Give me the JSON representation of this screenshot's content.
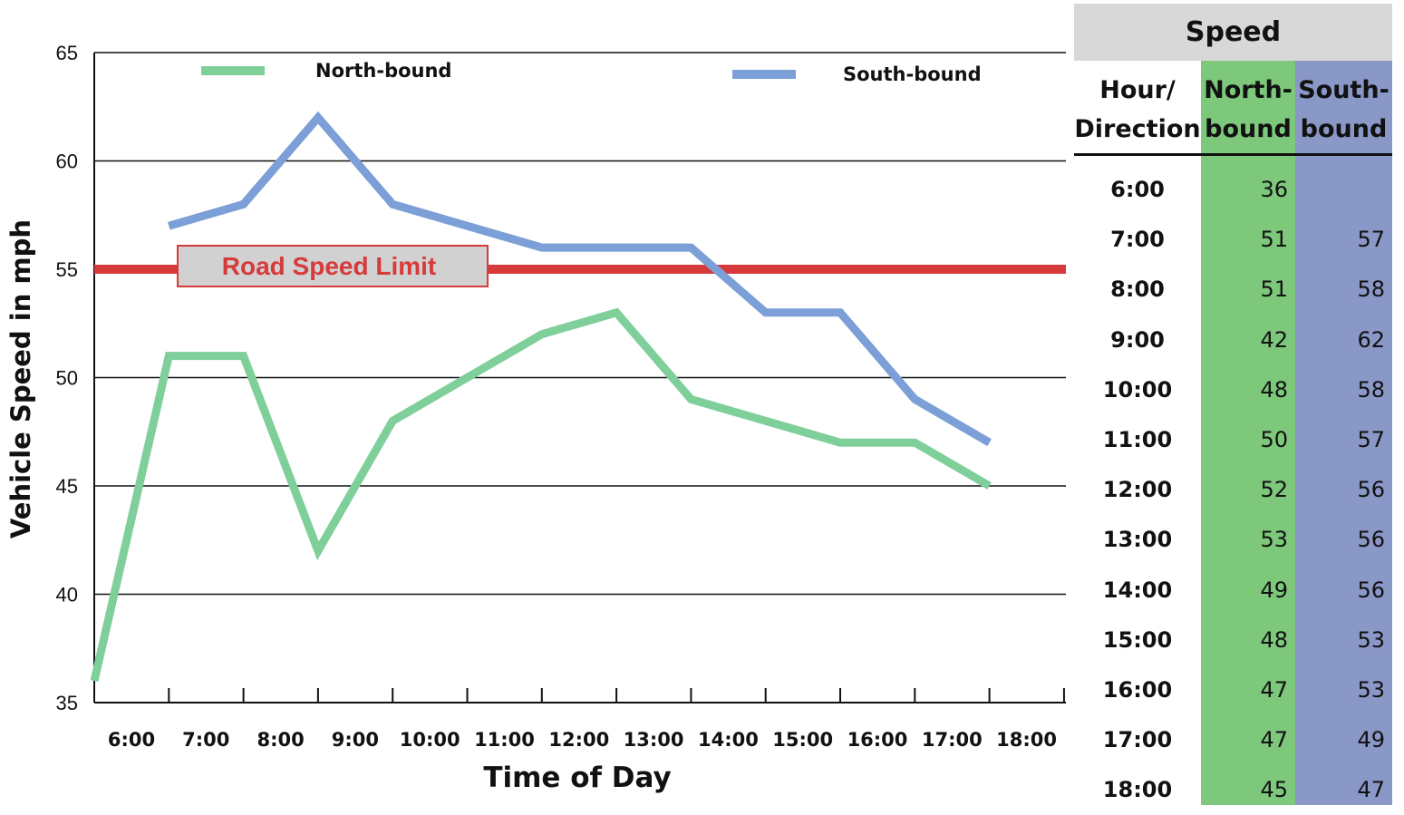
{
  "chart_data": {
    "type": "line",
    "xlabel": "Time of Day",
    "ylabel": "Vehicle Speed  in mph",
    "categories": [
      "6:00",
      "7:00",
      "8:00",
      "9:00",
      "10:00",
      "11:00",
      "12:00",
      "13:00",
      "14:00",
      "15:00",
      "16:00",
      "17:00",
      "18:00"
    ],
    "ylim": [
      35,
      65
    ],
    "yticks": [
      35,
      40,
      45,
      50,
      55,
      60,
      65
    ],
    "grid": true,
    "series": [
      {
        "name": "North-bound",
        "color": "#7fcf9a",
        "values": [
          36,
          51,
          51,
          42,
          48,
          50,
          52,
          53,
          49,
          48,
          47,
          47,
          45
        ]
      },
      {
        "name": "South-bound",
        "color": "#7b9fd6",
        "values": [
          null,
          57,
          58,
          62,
          58,
          57,
          56,
          56,
          56,
          53,
          53,
          49,
          47
        ]
      }
    ],
    "reference_line": {
      "label": "Road Speed Limit",
      "value": 55,
      "color": "#d63a3a"
    },
    "legend_position": "top"
  },
  "table": {
    "title": "Speed",
    "col_hour": [
      "Hour/",
      "Direction"
    ],
    "col_north": [
      "North-",
      "bound"
    ],
    "col_south": [
      "South-",
      "bound"
    ],
    "colors": {
      "header": "#d8d8d8",
      "north": "#7dc87b",
      "south": "#8a98c8"
    },
    "rows": [
      {
        "hour": "6:00",
        "north": "36",
        "south": ""
      },
      {
        "hour": "7:00",
        "north": "51",
        "south": "57"
      },
      {
        "hour": "8:00",
        "north": "51",
        "south": "58"
      },
      {
        "hour": "9:00",
        "north": "42",
        "south": "62"
      },
      {
        "hour": "10:00",
        "north": "48",
        "south": "58"
      },
      {
        "hour": "11:00",
        "north": "50",
        "south": "57"
      },
      {
        "hour": "12:00",
        "north": "52",
        "south": "56"
      },
      {
        "hour": "13:00",
        "north": "53",
        "south": "56"
      },
      {
        "hour": "14:00",
        "north": "49",
        "south": "56"
      },
      {
        "hour": "15:00",
        "north": "48",
        "south": "53"
      },
      {
        "hour": "16:00",
        "north": "47",
        "south": "53"
      },
      {
        "hour": "17:00",
        "north": "47",
        "south": "49"
      },
      {
        "hour": "18:00",
        "north": "45",
        "south": "47"
      }
    ]
  }
}
